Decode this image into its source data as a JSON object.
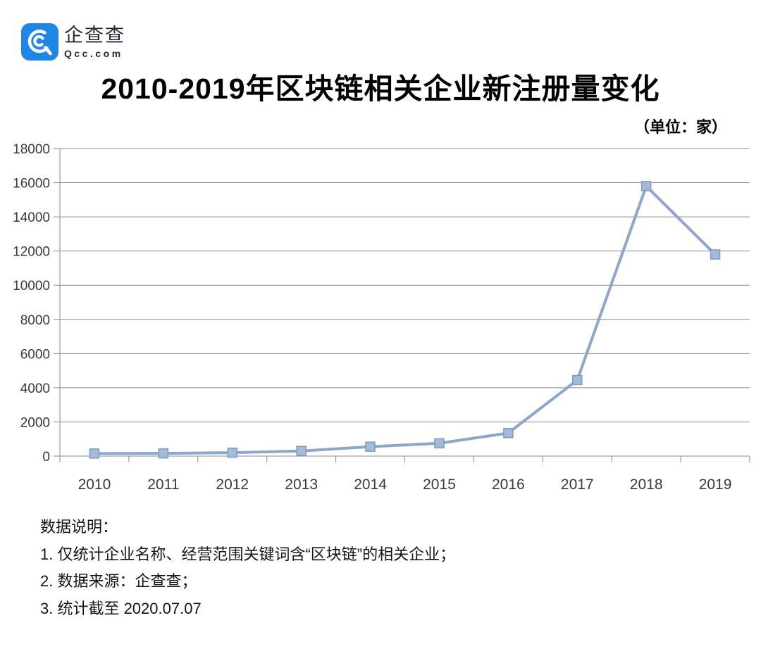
{
  "brand": {
    "name": "企查查",
    "domain": "Qcc.com",
    "logo_color": "#1e86e8"
  },
  "header": {
    "unit_label": "（单位：家）"
  },
  "chart_data": {
    "type": "line",
    "title": "2010-2019年区块链相关企业新注册量变化",
    "unit": "家",
    "categories": [
      "2010",
      "2011",
      "2012",
      "2013",
      "2014",
      "2015",
      "2016",
      "2017",
      "2018",
      "2019"
    ],
    "values": [
      150,
      160,
      200,
      300,
      550,
      750,
      1350,
      4450,
      15800,
      11800
    ],
    "xlabel": "",
    "ylabel": "",
    "ylim": [
      0,
      18000
    ],
    "ytick_step": 2000,
    "grid": true,
    "legend": "none",
    "colors": {
      "line": "#8ca7cc",
      "marker_fill": "#a4bad7",
      "marker_stroke": "#7e9cc4",
      "grid": "#8a8a8a",
      "axis": "#8a8a8a",
      "tick_label": "#3a3a3a"
    }
  },
  "notes": {
    "heading": "数据说明：",
    "items": [
      "1. 仅统计企业名称、经营范围关键词含“区块链”的相关企业；",
      "2. 数据来源：企查查；",
      "3. 统计截至 2020.07.07"
    ]
  }
}
